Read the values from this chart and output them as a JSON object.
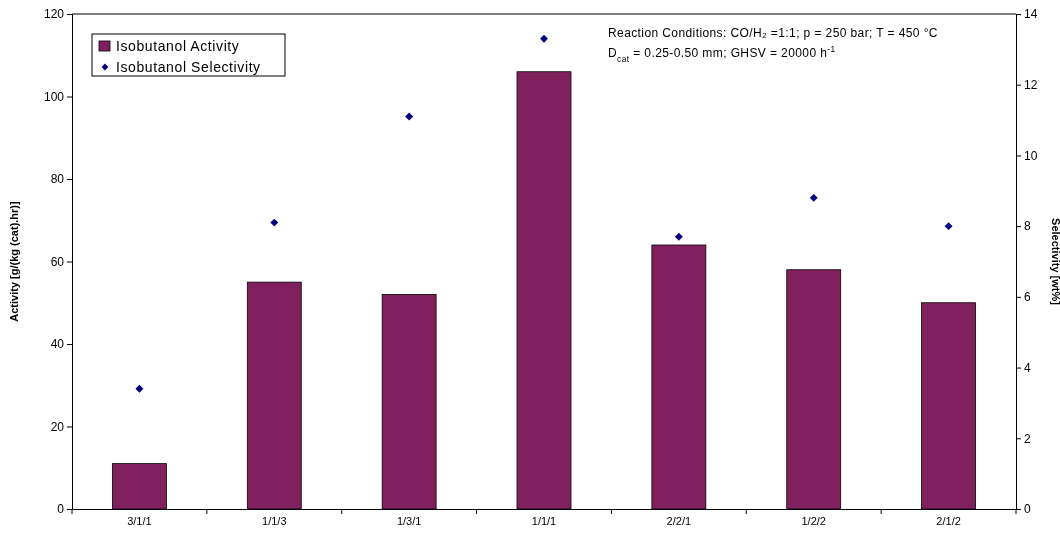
{
  "chart_data": {
    "type": "bar",
    "xlabel": null,
    "ylabel": "Activity [g/(kg (cat).hr)]",
    "y2label": "Selectivity [wt%]",
    "categories": [
      "3/1/1",
      "1/1/3",
      "1/3/1",
      "1/1/1",
      "2/2/1",
      "1/2/2",
      "2/1/2"
    ],
    "series": [
      {
        "name": "Isobutanol Activity",
        "color": "#80205e",
        "values": [
          11,
          55,
          52,
          106,
          64,
          58,
          50
        ]
      },
      {
        "name": "Isobutanol Selectivity",
        "type": "scatter",
        "axis": "y2",
        "color": "#000080",
        "values": [
          3.4,
          8.1,
          11.1,
          13.3,
          7.7,
          8.8,
          8.0
        ]
      }
    ],
    "ylim": [
      0,
      120
    ],
    "yticks": [
      0,
      20,
      40,
      60,
      80,
      100,
      120
    ],
    "y2lim": [
      0,
      14
    ],
    "y2ticks": [
      0,
      2,
      4,
      6,
      8,
      10,
      12,
      14
    ],
    "marker": "diamond",
    "grid": false,
    "legend": "top left",
    "annotations": [
      "Reaction Conditions:  CO/H₂ =1:1; p = 250 bar; T = 450 °C",
      "D$_{cat}$ = 0.25-0.50 mm; GHSV = 20000 h$^{-1}$"
    ]
  }
}
